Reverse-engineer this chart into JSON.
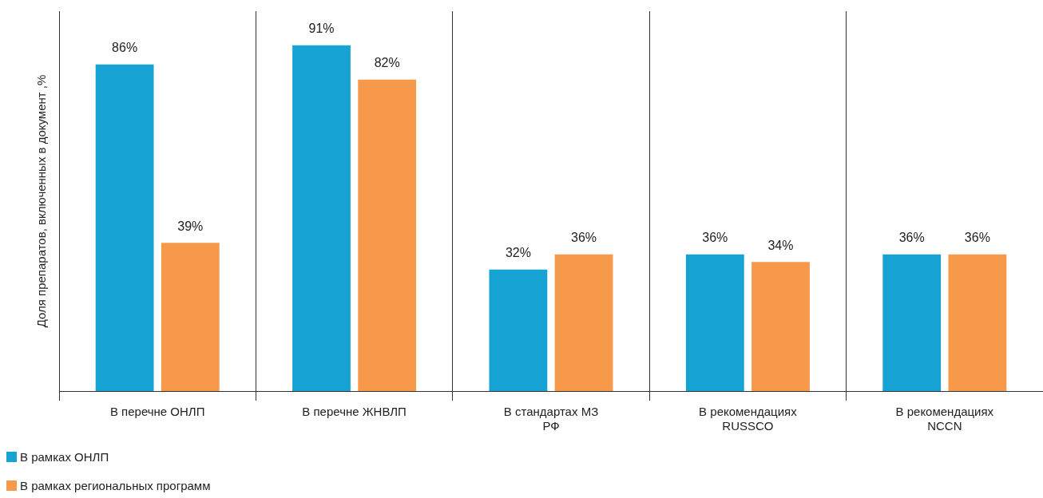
{
  "chart_data": {
    "type": "bar",
    "ylabel": "Доля препаратов, включенных в документ ,%",
    "categories": [
      "В перечне ОНЛП",
      "В перечне ЖНВЛП",
      "В стандартах МЗ РФ",
      "В рекомендациях RUSSCO",
      "В рекомендациях NCCN"
    ],
    "series": [
      {
        "name": "В рамках ОНЛП",
        "color": "#17a2d4",
        "values": [
          86,
          91,
          32,
          36,
          36
        ],
        "value_labels": [
          "86%",
          "91%",
          "32%",
          "36%",
          "36%"
        ]
      },
      {
        "name": "В рамках региональных программ",
        "color": "#f7994a",
        "values": [
          39,
          82,
          36,
          34,
          36
        ],
        "value_labels": [
          "39%",
          "82%",
          "36%",
          "34%",
          "36%"
        ]
      }
    ],
    "grid": "x",
    "legend": "bottom left"
  }
}
